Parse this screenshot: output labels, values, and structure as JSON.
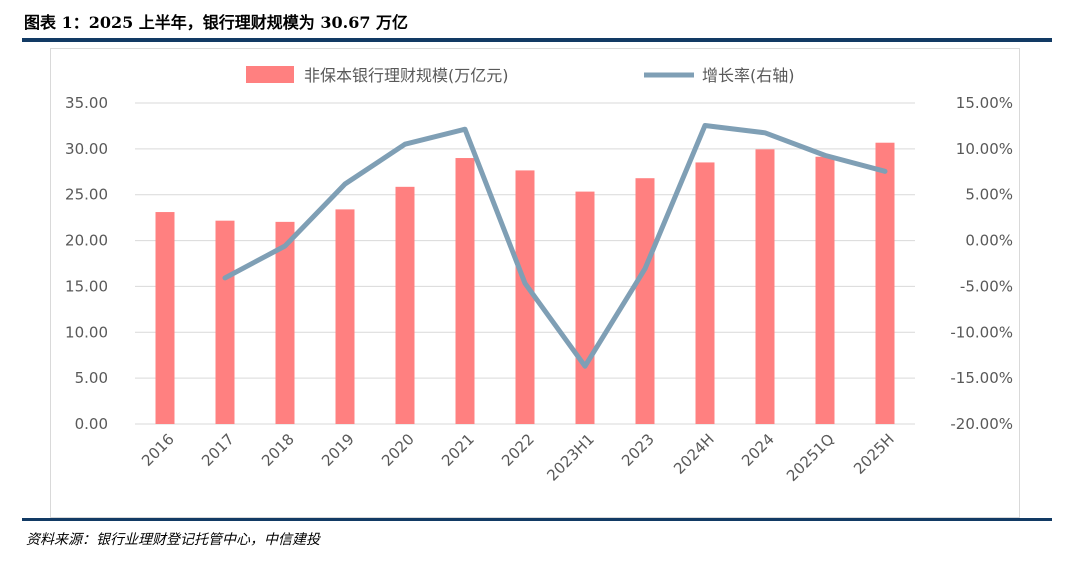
{
  "header": {
    "title": "图表 1：2025 上半年，银行理财规模为 30.67 万亿"
  },
  "footer": {
    "source": "资料来源：银行业理财登记托管中心，中信建投"
  },
  "colors": {
    "bar": "#ff8080",
    "line": "#7f9fb5",
    "rule": "#123a64",
    "grid": "#d9d9d9",
    "text": "#595959"
  },
  "chart_data": {
    "type": "bar",
    "title": "",
    "categories": [
      "2016",
      "2017",
      "2018",
      "2019",
      "2020",
      "2021",
      "2022",
      "2023H1",
      "2023",
      "2024H",
      "2024",
      "20251Q",
      "2025H"
    ],
    "series": [
      {
        "name": "非保本银行理财规模(万亿元)",
        "type": "bar",
        "axis": "left",
        "values": [
          23.11,
          22.17,
          22.04,
          23.4,
          25.86,
          29.0,
          27.65,
          25.34,
          26.8,
          28.52,
          29.95,
          29.14,
          30.67
        ]
      },
      {
        "name": "增长率(右轴)",
        "type": "line",
        "axis": "right",
        "values": [
          null,
          -4.07,
          -0.59,
          6.17,
          10.51,
          12.14,
          -4.66,
          -13.7,
          -3.07,
          12.55,
          11.75,
          9.29,
          7.55
        ]
      }
    ],
    "y_left": {
      "min": 0,
      "max": 35,
      "step": 5,
      "tick_labels": [
        "0.00",
        "5.00",
        "10.00",
        "15.00",
        "20.00",
        "25.00",
        "30.00",
        "35.00"
      ]
    },
    "y_right": {
      "min": -20,
      "max": 15,
      "step": 5,
      "tick_labels": [
        "-20.00%",
        "-15.00%",
        "-10.00%",
        "-5.00%",
        "0.00%",
        "5.00%",
        "10.00%",
        "15.00%"
      ]
    },
    "grid": true,
    "legend": "top"
  }
}
